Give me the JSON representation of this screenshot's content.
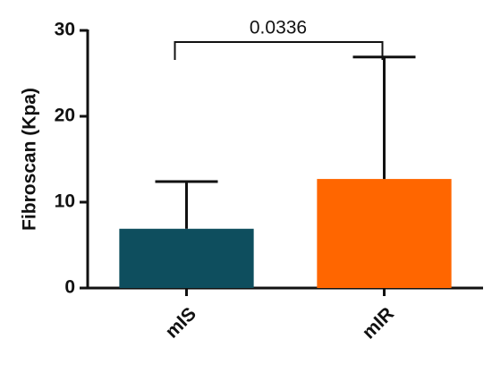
{
  "chart_data": {
    "type": "bar",
    "ylabel": "Fibroscan (Kpa)",
    "categories": [
      "mIS",
      "mIR"
    ],
    "values": [
      6.9,
      12.7
    ],
    "errors": [
      5.5,
      14.2
    ],
    "colors": [
      "#0e4e5e",
      "#ff6600"
    ],
    "ylim": [
      0,
      30
    ],
    "yticks": [
      0,
      10,
      20,
      30
    ],
    "annotation": "0.0336"
  }
}
